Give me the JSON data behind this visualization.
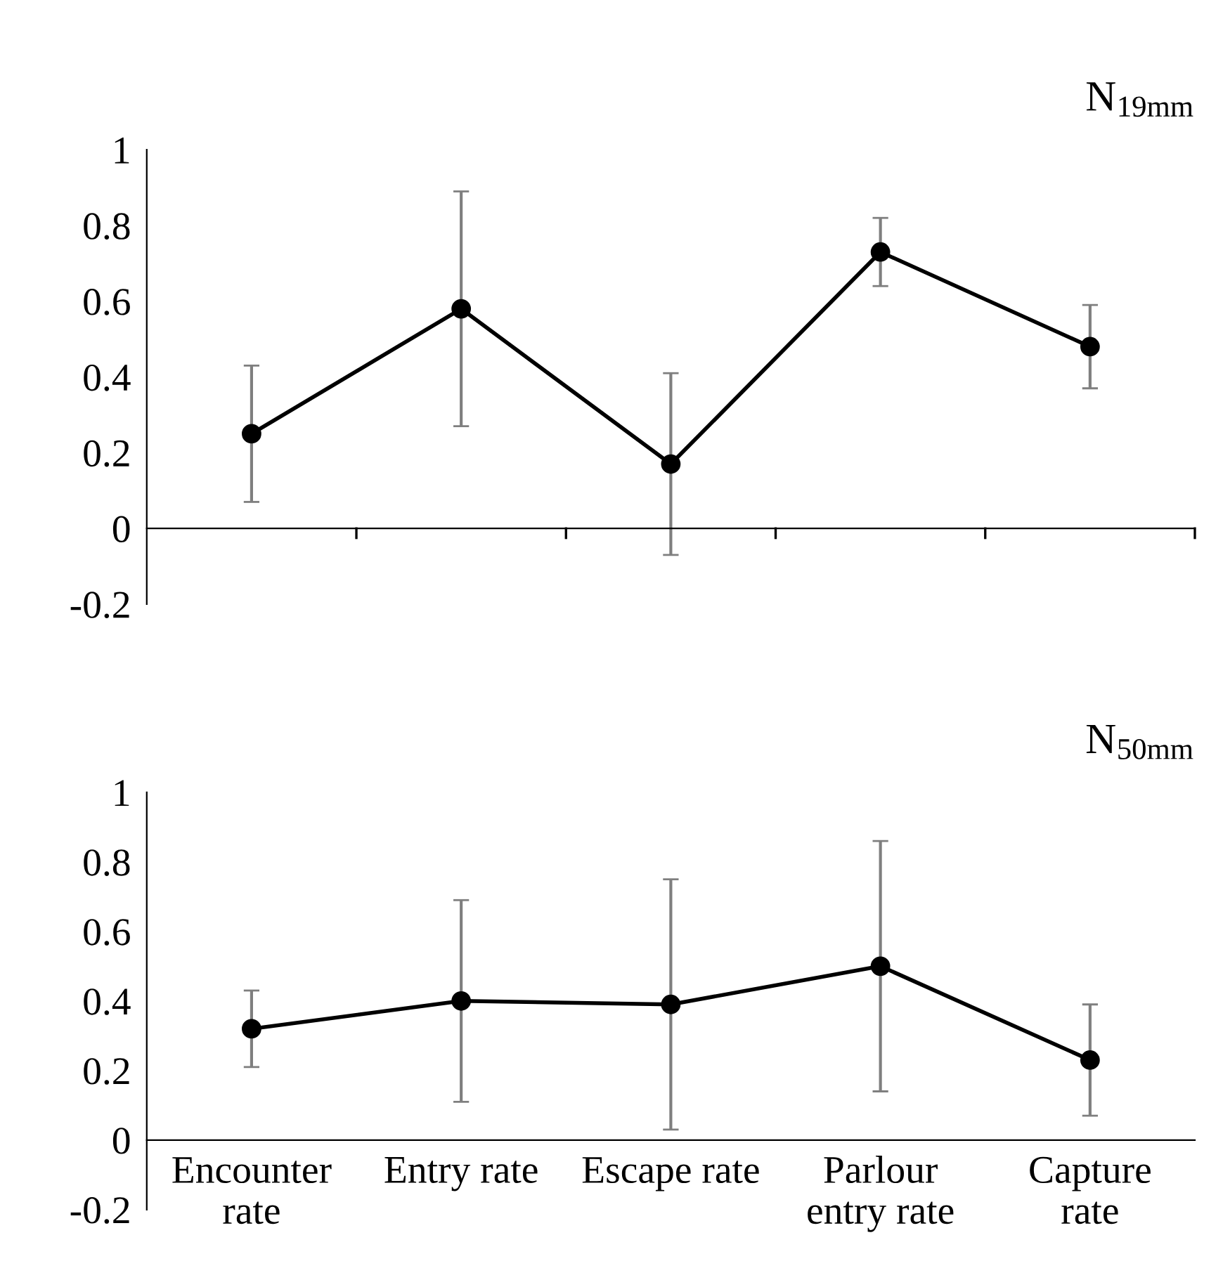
{
  "chart_data": [
    {
      "type": "line",
      "title": "N$_{19mm}$",
      "categories": [
        null,
        null,
        null,
        null,
        null
      ],
      "series": [
        {
          "color": "#000000",
          "values": [
            0.25,
            0.58,
            0.17,
            0.73,
            0.48
          ],
          "errors": [
            [
              0.07,
              0.43
            ],
            [
              0.27,
              0.89
            ],
            [
              -0.07,
              0.41
            ],
            [
              0.64,
              0.82
            ],
            [
              0.37,
              0.59
            ]
          ]
        }
      ],
      "ylim": [
        -0.2,
        1
      ],
      "yticks": [
        -0.2,
        0,
        0.2,
        0.4,
        0.6,
        0.8,
        1
      ],
      "tick_labels": "y",
      "legend": false,
      "marker": "circle",
      "line_style": "solid"
    },
    {
      "type": "line",
      "title": "N$_{50mm}$",
      "categories": [
        "Encounter\nrate",
        "Entry rate",
        "Escape rate",
        "Parlour\nentry rate",
        "Capture\nrate"
      ],
      "series": [
        {
          "color": "#000000",
          "values": [
            0.32,
            0.4,
            0.39,
            0.5,
            0.23
          ],
          "errors": [
            [
              0.21,
              0.43
            ],
            [
              0.11,
              0.69
            ],
            [
              0.03,
              0.75
            ],
            [
              0.14,
              0.86
            ],
            [
              0.07,
              0.39
            ]
          ]
        }
      ],
      "ylim": [
        -0.2,
        1
      ],
      "yticks": [
        -0.2,
        0,
        0.2,
        0.4,
        0.6,
        0.8,
        1
      ],
      "legend": false,
      "marker": "circle",
      "line_style": "solid"
    }
  ]
}
